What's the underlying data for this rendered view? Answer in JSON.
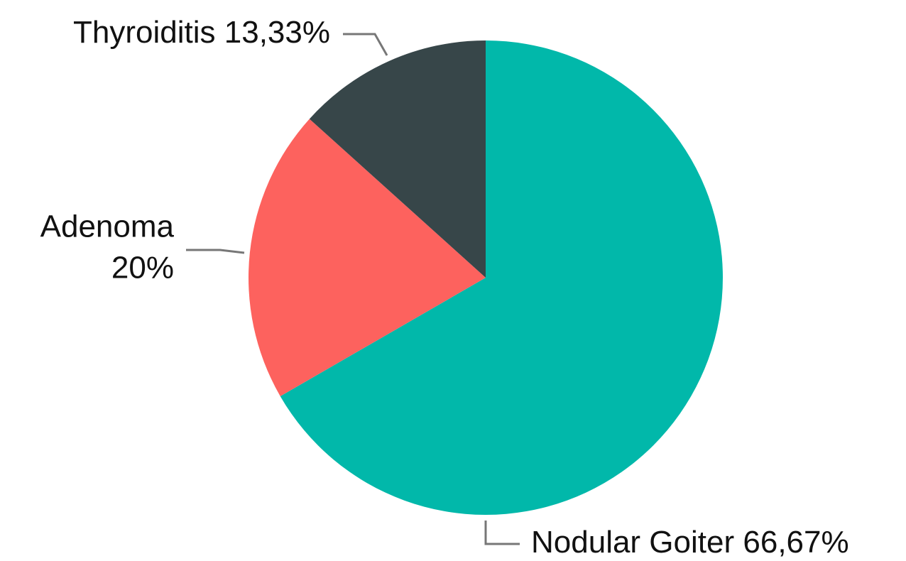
{
  "chart_data": {
    "type": "pie",
    "categories": [
      "Nodular Goiter",
      "Adenoma",
      "Thyroiditis"
    ],
    "values": [
      66.67,
      20,
      13.33
    ],
    "value_labels": [
      "66,67%",
      "20%",
      "13,33%"
    ],
    "colors": [
      "#01b8aa",
      "#fd625e",
      "#374649"
    ]
  }
}
